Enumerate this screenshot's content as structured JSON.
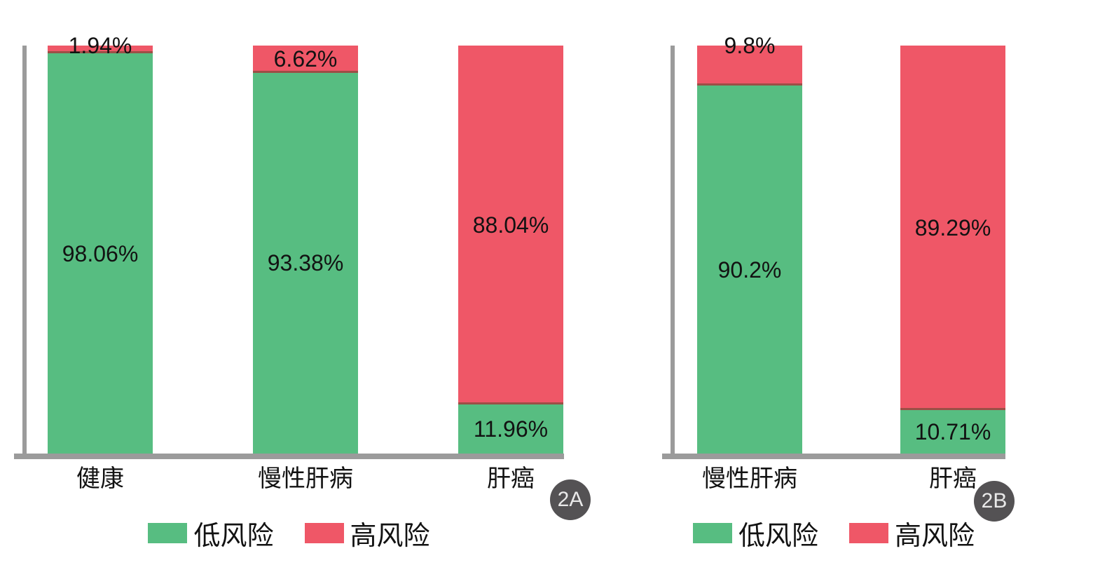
{
  "colors": {
    "low_risk_green": "#57BD81",
    "high_risk_red": "#EF5767",
    "axis_gray": "#9B9B9B",
    "badge_gray": "#545254",
    "label_black": "#121212"
  },
  "chart_data": [
    {
      "type": "bar",
      "stacked": true,
      "panel_label": "2A",
      "title": "",
      "xlabel": "",
      "ylabel": "",
      "ylim": [
        0,
        100
      ],
      "grid": false,
      "tick_labels_shown": false,
      "axes_shown": [
        "left",
        "bottom"
      ],
      "legend_position": "bottom",
      "categories": [
        "健康",
        "慢性肝病",
        "肝癌"
      ],
      "series": [
        {
          "name": "低风险",
          "color": "#57BD81",
          "values": [
            98.06,
            93.38,
            11.96
          ],
          "labels": [
            "98.06%",
            "93.38%",
            "11.96%"
          ],
          "label_placement": [
            "center",
            "center",
            "center"
          ]
        },
        {
          "name": "高风险",
          "color": "#EF5767",
          "values": [
            1.94,
            6.62,
            88.04
          ],
          "labels": [
            "1.94%",
            "6.62%",
            "88.04%"
          ],
          "label_placement": [
            "top",
            "center",
            "center"
          ]
        }
      ]
    },
    {
      "type": "bar",
      "stacked": true,
      "panel_label": "2B",
      "title": "",
      "xlabel": "",
      "ylabel": "",
      "ylim": [
        0,
        100
      ],
      "grid": false,
      "tick_labels_shown": false,
      "axes_shown": [
        "left",
        "bottom"
      ],
      "legend_position": "bottom",
      "categories": [
        "慢性肝病",
        "肝癌"
      ],
      "series": [
        {
          "name": "低风险",
          "color": "#57BD81",
          "values": [
            90.2,
            10.71
          ],
          "labels": [
            "90.2%",
            "10.71%"
          ],
          "label_placement": [
            "center",
            "center"
          ]
        },
        {
          "name": "高风险",
          "color": "#EF5767",
          "values": [
            9.8,
            89.29
          ],
          "labels": [
            "9.8%",
            "89.29%"
          ],
          "label_placement": [
            "top",
            "center"
          ]
        }
      ]
    }
  ]
}
